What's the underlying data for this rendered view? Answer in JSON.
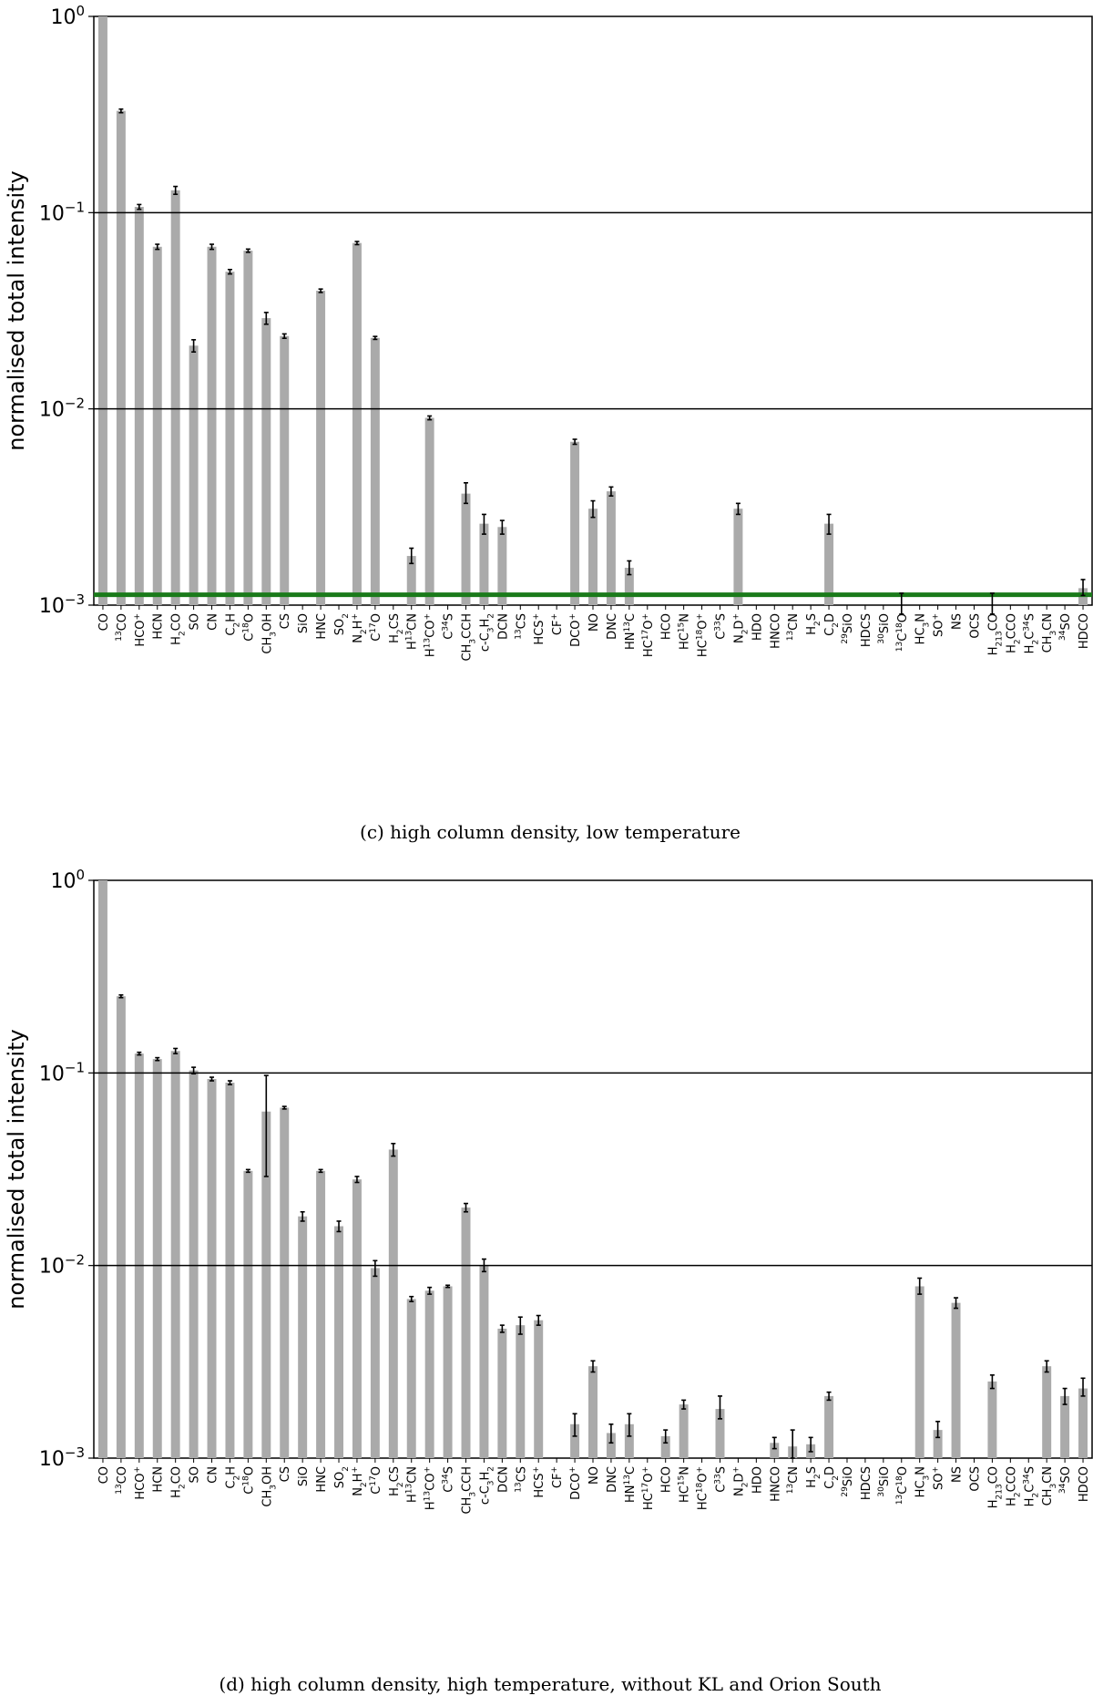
{
  "chart_data": [
    {
      "type": "bar",
      "title": "(c) high column density, low temperature",
      "ylabel": "normalised total intensity",
      "yscale": "log",
      "ylim": [
        0.001,
        1
      ],
      "yticks": [
        "10^0",
        "10^-1",
        "10^-2",
        "10^-3"
      ],
      "grid_lines": [
        0.1,
        0.01
      ],
      "threshold_line": {
        "value": 0.00113,
        "color": "#1a7a1a"
      },
      "bar_color": "#aaaaaa",
      "categories": [
        "CO",
        "13CO",
        "HCO+",
        "HCN",
        "H2CO",
        "SO",
        "CN",
        "C2H",
        "C18O",
        "CH3OH",
        "CS",
        "SiO",
        "HNC",
        "SO2",
        "N2H+",
        "C17O",
        "H2CS",
        "H13CN",
        "H13CO+",
        "C34S",
        "CH3CCH",
        "c-C3H2",
        "DCN",
        "13CS",
        "HCS+",
        "CF+",
        "DCO+",
        "NO",
        "DNC",
        "HN13C",
        "HC17O+",
        "HCO",
        "HC15N",
        "HC18O+",
        "C33S",
        "N2D+",
        "HDO",
        "HNCO",
        "13CN",
        "H2S",
        "C2D",
        "29SiO",
        "HDCS",
        "30SiO",
        "13C18O",
        "HC3N",
        "SO+",
        "NS",
        "OCS",
        "H2 13CO",
        "H2CCO",
        "H2C34S",
        "CH3CN",
        "34SO",
        "HDCO"
      ],
      "values": [
        1.0,
        0.33,
        0.107,
        0.067,
        0.13,
        0.021,
        0.067,
        0.05,
        0.064,
        0.029,
        0.0235,
        null,
        0.04,
        null,
        0.07,
        0.023,
        null,
        0.00178,
        0.009,
        null,
        0.0037,
        0.0026,
        0.0025,
        null,
        null,
        null,
        0.0068,
        0.0031,
        0.0038,
        0.00155,
        null,
        null,
        null,
        null,
        null,
        0.0031,
        null,
        null,
        null,
        null,
        0.0026,
        null,
        null,
        null,
        0.00098,
        null,
        null,
        null,
        null,
        0.00098,
        null,
        null,
        null,
        null,
        0.00122
      ],
      "err_low": [
        null,
        0.323,
        0.104,
        0.065,
        0.124,
        0.0195,
        0.065,
        0.0487,
        0.0628,
        0.027,
        0.0229,
        null,
        0.0392,
        null,
        0.0687,
        0.0226,
        null,
        0.00163,
        0.0088,
        null,
        0.0033,
        0.0023,
        0.0023,
        null,
        null,
        null,
        0.0066,
        0.0028,
        0.0036,
        0.00143,
        null,
        null,
        null,
        null,
        null,
        0.0029,
        null,
        null,
        null,
        null,
        0.0023,
        null,
        null,
        null,
        0.0009,
        null,
        null,
        null,
        null,
        0.0009,
        null,
        null,
        null,
        null,
        0.00112
      ],
      "err_high": [
        null,
        0.337,
        0.11,
        0.069,
        0.136,
        0.0225,
        0.069,
        0.0513,
        0.0652,
        0.031,
        0.0241,
        null,
        0.0408,
        null,
        0.0713,
        0.0234,
        null,
        0.00195,
        0.0092,
        null,
        0.0042,
        0.0029,
        0.0027,
        null,
        null,
        null,
        0.007,
        0.0034,
        0.004,
        0.00168,
        null,
        null,
        null,
        null,
        null,
        0.0033,
        null,
        null,
        null,
        null,
        0.0029,
        null,
        null,
        null,
        0.00115,
        null,
        null,
        null,
        null,
        0.00115,
        null,
        null,
        null,
        null,
        0.00135
      ]
    },
    {
      "type": "bar",
      "title": "(d) high column density, high temperature, without KL and Orion South",
      "ylabel": "normalised total intensity",
      "yscale": "log",
      "ylim": [
        0.001,
        1
      ],
      "yticks": [
        "10^0",
        "10^-1",
        "10^-2",
        "10^-3"
      ],
      "grid_lines": [
        0.1,
        0.01
      ],
      "bar_color": "#aaaaaa",
      "categories": [
        "CO",
        "13CO",
        "HCO+",
        "HCN",
        "H2CO",
        "SO",
        "CN",
        "C2H",
        "C18O",
        "CH3OH",
        "CS",
        "SiO",
        "HNC",
        "SO2",
        "N2H+",
        "C17O",
        "H2CS",
        "H13CN",
        "H13CO+",
        "C34S",
        "CH3CCH",
        "c-C3H2",
        "DCN",
        "13CS",
        "HCS+",
        "CF+",
        "DCO+",
        "NO",
        "DNC",
        "HN13C",
        "HC17O+",
        "HCO",
        "HC15N",
        "HC18O+",
        "C33S",
        "N2D+",
        "HDO",
        "HNCO",
        "13CN",
        "H2S",
        "C2D",
        "29SiO",
        "HDCS",
        "30SiO",
        "13C18O",
        "HC3N",
        "SO+",
        "NS",
        "OCS",
        "H2 13CO",
        "H2CCO",
        "H2C34S",
        "CH3CN",
        "34SO",
        "HDCO"
      ],
      "values": [
        1.0,
        0.25,
        0.126,
        0.118,
        0.13,
        0.103,
        0.093,
        0.089,
        0.031,
        0.063,
        0.066,
        0.018,
        0.031,
        0.016,
        0.028,
        0.0097,
        0.04,
        0.0067,
        0.0074,
        0.0078,
        0.02,
        0.01,
        0.0047,
        0.0049,
        0.0052,
        null,
        0.0015,
        0.003,
        0.00135,
        0.0015,
        null,
        0.0013,
        0.0019,
        null,
        0.0018,
        null,
        null,
        0.0012,
        0.00115,
        0.00118,
        0.0021,
        null,
        null,
        null,
        null,
        0.0078,
        0.0014,
        0.0064,
        null,
        0.0025,
        null,
        null,
        0.003,
        0.0021,
        0.0023
      ],
      "err_low": [
        null,
        0.246,
        0.124,
        0.116,
        0.126,
        0.099,
        0.091,
        0.087,
        0.0305,
        0.029,
        0.065,
        0.017,
        0.0305,
        0.015,
        0.027,
        0.0088,
        0.037,
        0.0065,
        0.0071,
        0.0077,
        0.019,
        0.0093,
        0.0045,
        0.0044,
        0.0049,
        null,
        0.0013,
        0.0028,
        0.0012,
        0.0013,
        null,
        0.0012,
        0.0018,
        null,
        0.0016,
        null,
        null,
        0.00112,
        0.001,
        0.00108,
        0.002,
        null,
        null,
        null,
        null,
        0.0071,
        0.00128,
        0.006,
        null,
        0.0023,
        null,
        null,
        0.0028,
        0.0019,
        0.0021
      ],
      "err_high": [
        null,
        0.254,
        0.128,
        0.12,
        0.134,
        0.107,
        0.095,
        0.091,
        0.0315,
        0.097,
        0.067,
        0.019,
        0.0315,
        0.017,
        0.029,
        0.0106,
        0.043,
        0.0069,
        0.0077,
        0.0079,
        0.021,
        0.0108,
        0.0049,
        0.0054,
        0.0055,
        null,
        0.0017,
        0.0032,
        0.0015,
        0.0017,
        null,
        0.0014,
        0.002,
        null,
        0.0021,
        null,
        null,
        0.00128,
        0.0014,
        0.00128,
        0.0022,
        null,
        null,
        null,
        null,
        0.0086,
        0.00155,
        0.0068,
        null,
        0.0027,
        null,
        null,
        0.0032,
        0.0023,
        0.0026
      ]
    }
  ]
}
